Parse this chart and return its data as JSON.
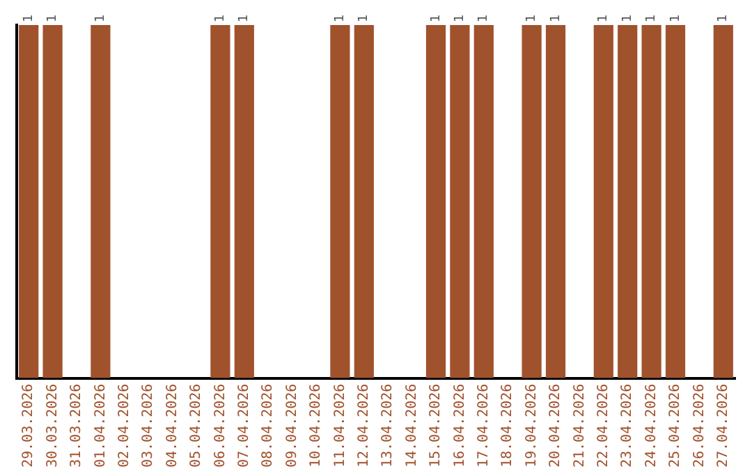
{
  "chart_data": {
    "type": "bar",
    "tick_labels": "x",
    "categories": [
      "29.03.2026",
      "30.03.2026",
      "31.03.2026",
      "01.04.2026",
      "02.04.2026",
      "03.04.2026",
      "04.04.2026",
      "05.04.2026",
      "06.04.2026",
      "07.04.2026",
      "08.04.2026",
      "09.04.2026",
      "10.04.2026",
      "11.04.2026",
      "12.04.2026",
      "13.04.2026",
      "14.04.2026",
      "15.04.2026",
      "16.04.2026",
      "17.04.2026",
      "18.04.2026",
      "19.04.2026",
      "20.04.2026",
      "21.04.2026",
      "22.04.2026",
      "23.04.2026",
      "24.04.2026",
      "25.04.2026",
      "26.04.2026",
      "27.04.2026"
    ],
    "values": [
      1,
      1,
      0,
      1,
      0,
      0,
      0,
      0,
      1,
      1,
      0,
      0,
      0,
      1,
      1,
      0,
      0,
      1,
      1,
      1,
      0,
      1,
      1,
      0,
      1,
      1,
      1,
      1,
      0,
      1
    ],
    "value_labels": [
      "1",
      "1",
      null,
      "1",
      null,
      null,
      null,
      null,
      "1",
      "1",
      null,
      null,
      null,
      "1",
      "1",
      null,
      null,
      "1",
      "1",
      "1",
      null,
      "1",
      "1",
      null,
      "1",
      "1",
      "1",
      "1",
      null,
      "1"
    ],
    "color": "#a0522d",
    "grid": false,
    "legend": false
  }
}
